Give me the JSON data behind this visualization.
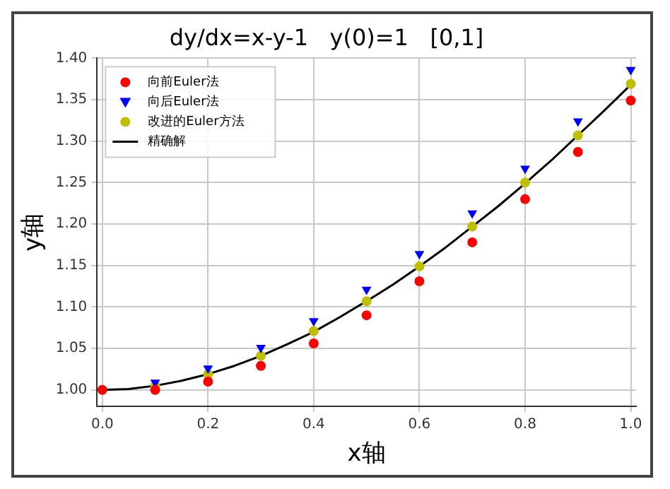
{
  "chart_data": {
    "type": "scatter",
    "title": "dy/dx=x-y-1   y(0)=1   [0,1]",
    "xlabel": "x轴",
    "ylabel": "y轴",
    "x": [
      0,
      0.1,
      0.2,
      0.3,
      0.4,
      0.5,
      0.6,
      0.7,
      0.8,
      0.9,
      1.0
    ],
    "series": [
      {
        "name": "向前Euler法",
        "color": "#ff0000",
        "marker": "circle",
        "values": [
          1.0,
          1.0,
          1.01,
          1.029,
          1.056,
          1.09,
          1.131,
          1.178,
          1.23,
          1.287,
          1.349
        ]
      },
      {
        "name": "向后Euler法",
        "color": "#0000ff",
        "marker": "triangle",
        "values": [
          null,
          1.009,
          1.026,
          1.051,
          1.083,
          1.121,
          1.164,
          1.213,
          1.267,
          1.324,
          1.386
        ]
      },
      {
        "name": "改进的Euler方法",
        "color": "#bfbf00",
        "marker": "circle",
        "values": [
          null,
          1.005,
          1.019,
          1.041,
          1.071,
          1.107,
          1.149,
          1.197,
          1.25,
          1.307,
          1.369
        ]
      },
      {
        "name": "精确解",
        "type": "line",
        "color": "#000000",
        "marker": "none",
        "x": [
          0,
          0.05,
          0.1,
          0.15,
          0.2,
          0.25,
          0.3,
          0.35,
          0.4,
          0.45,
          0.5,
          0.55,
          0.6,
          0.65,
          0.7,
          0.75,
          0.8,
          0.85,
          0.9,
          0.95,
          1.0
        ],
        "values": [
          1.0,
          1.001,
          1.005,
          1.011,
          1.019,
          1.029,
          1.041,
          1.055,
          1.07,
          1.088,
          1.107,
          1.127,
          1.149,
          1.172,
          1.197,
          1.222,
          1.249,
          1.277,
          1.307,
          1.337,
          1.368
        ]
      }
    ],
    "xlim": [
      -0.01,
      1.01
    ],
    "ylim": [
      0.98,
      1.4
    ],
    "xticks": [
      {
        "value": 0,
        "label": "0.0"
      },
      0.2,
      0.4,
      0.6,
      0.8,
      {
        "value": 1,
        "label": "1.0"
      }
    ],
    "yticks": [
      {
        "value": 1,
        "label": "1.00"
      },
      1.05,
      {
        "value": 1.1,
        "label": "1.10"
      },
      1.15,
      {
        "value": 1.2,
        "label": "1.20"
      },
      1.25,
      {
        "value": 1.3,
        "label": "1.30"
      },
      1.35,
      {
        "value": 1.4,
        "label": "1.40"
      }
    ],
    "grid": true,
    "legend": "top left"
  }
}
